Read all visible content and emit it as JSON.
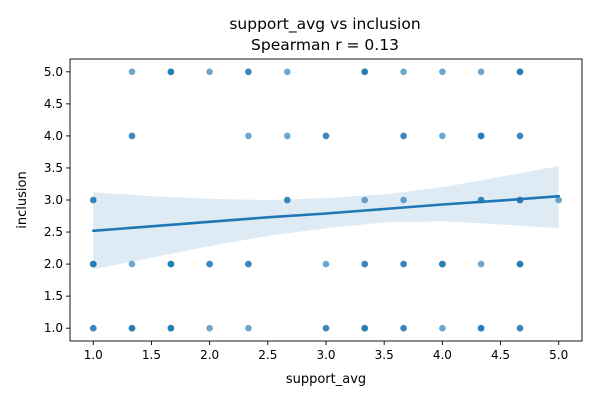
{
  "chart_data": {
    "type": "scatter",
    "title": "support_avg vs inclusion",
    "subtitle": "Spearman r = 0.13",
    "xlabel": "support_avg",
    "ylabel": "inclusion",
    "xlim": [
      0.8,
      5.2
    ],
    "ylim": [
      0.8,
      5.2
    ],
    "xticks": [
      1.0,
      1.5,
      2.0,
      2.5,
      3.0,
      3.5,
      4.0,
      4.5,
      5.0
    ],
    "yticks": [
      1.0,
      1.5,
      2.0,
      2.5,
      3.0,
      3.5,
      4.0,
      4.5,
      5.0
    ],
    "tick_labels": {
      "x": [
        "1.0",
        "1.5",
        "2.0",
        "2.5",
        "3.0",
        "3.5",
        "4.0",
        "4.5",
        "5.0"
      ],
      "y": [
        "1.0",
        "1.5",
        "2.0",
        "2.5",
        "3.0",
        "3.5",
        "4.0",
        "4.5",
        "5.0"
      ]
    },
    "grid": false,
    "colors": {
      "point": "#1f77b4",
      "line": "#1f77b4",
      "band": "#1f77b4"
    },
    "points": [
      {
        "x": 1.0,
        "y": 1.0,
        "n": 2
      },
      {
        "x": 1.0,
        "y": 2.0,
        "n": 3
      },
      {
        "x": 1.0,
        "y": 3.0,
        "n": 2
      },
      {
        "x": 1.333,
        "y": 1.0,
        "n": 3
      },
      {
        "x": 1.333,
        "y": 2.0,
        "n": 1
      },
      {
        "x": 1.333,
        "y": 4.0,
        "n": 2
      },
      {
        "x": 1.333,
        "y": 5.0,
        "n": 1
      },
      {
        "x": 1.667,
        "y": 1.0,
        "n": 3
      },
      {
        "x": 1.667,
        "y": 2.0,
        "n": 3
      },
      {
        "x": 1.667,
        "y": 5.0,
        "n": 3
      },
      {
        "x": 2.0,
        "y": 1.0,
        "n": 1
      },
      {
        "x": 2.0,
        "y": 2.0,
        "n": 2
      },
      {
        "x": 2.0,
        "y": 5.0,
        "n": 1
      },
      {
        "x": 2.333,
        "y": 1.0,
        "n": 1
      },
      {
        "x": 2.333,
        "y": 2.0,
        "n": 2
      },
      {
        "x": 2.333,
        "y": 4.0,
        "n": 1
      },
      {
        "x": 2.333,
        "y": 5.0,
        "n": 2
      },
      {
        "x": 2.667,
        "y": 3.0,
        "n": 2
      },
      {
        "x": 2.667,
        "y": 4.0,
        "n": 1
      },
      {
        "x": 2.667,
        "y": 5.0,
        "n": 1
      },
      {
        "x": 3.0,
        "y": 1.0,
        "n": 2
      },
      {
        "x": 3.0,
        "y": 2.0,
        "n": 1
      },
      {
        "x": 3.0,
        "y": 4.0,
        "n": 2
      },
      {
        "x": 3.333,
        "y": 1.0,
        "n": 3
      },
      {
        "x": 3.333,
        "y": 2.0,
        "n": 2
      },
      {
        "x": 3.333,
        "y": 3.0,
        "n": 1
      },
      {
        "x": 3.333,
        "y": 5.0,
        "n": 3
      },
      {
        "x": 3.667,
        "y": 1.0,
        "n": 2
      },
      {
        "x": 3.667,
        "y": 2.0,
        "n": 2
      },
      {
        "x": 3.667,
        "y": 3.0,
        "n": 1
      },
      {
        "x": 3.667,
        "y": 4.0,
        "n": 2
      },
      {
        "x": 3.667,
        "y": 5.0,
        "n": 1
      },
      {
        "x": 4.0,
        "y": 1.0,
        "n": 1
      },
      {
        "x": 4.0,
        "y": 2.0,
        "n": 3
      },
      {
        "x": 4.0,
        "y": 4.0,
        "n": 1
      },
      {
        "x": 4.0,
        "y": 5.0,
        "n": 1
      },
      {
        "x": 4.333,
        "y": 1.0,
        "n": 3
      },
      {
        "x": 4.333,
        "y": 2.0,
        "n": 1
      },
      {
        "x": 4.333,
        "y": 3.0,
        "n": 2
      },
      {
        "x": 4.333,
        "y": 4.0,
        "n": 3
      },
      {
        "x": 4.333,
        "y": 5.0,
        "n": 1
      },
      {
        "x": 4.667,
        "y": 1.0,
        "n": 2
      },
      {
        "x": 4.667,
        "y": 2.0,
        "n": 3
      },
      {
        "x": 4.667,
        "y": 3.0,
        "n": 3
      },
      {
        "x": 4.667,
        "y": 4.0,
        "n": 2
      },
      {
        "x": 4.667,
        "y": 5.0,
        "n": 3
      },
      {
        "x": 5.0,
        "y": 3.0,
        "n": 1
      }
    ],
    "regression": {
      "x": [
        1.0,
        1.5,
        2.0,
        2.5,
        3.0,
        3.5,
        4.0,
        4.5,
        5.0
      ],
      "y": [
        2.52,
        2.59,
        2.66,
        2.73,
        2.79,
        2.86,
        2.93,
        2.99,
        3.06
      ],
      "ci_lower": [
        1.92,
        2.1,
        2.28,
        2.44,
        2.56,
        2.65,
        2.67,
        2.62,
        2.56
      ],
      "ci_upper": [
        3.12,
        3.06,
        3.02,
        3.0,
        3.03,
        3.09,
        3.2,
        3.36,
        3.53
      ]
    }
  }
}
